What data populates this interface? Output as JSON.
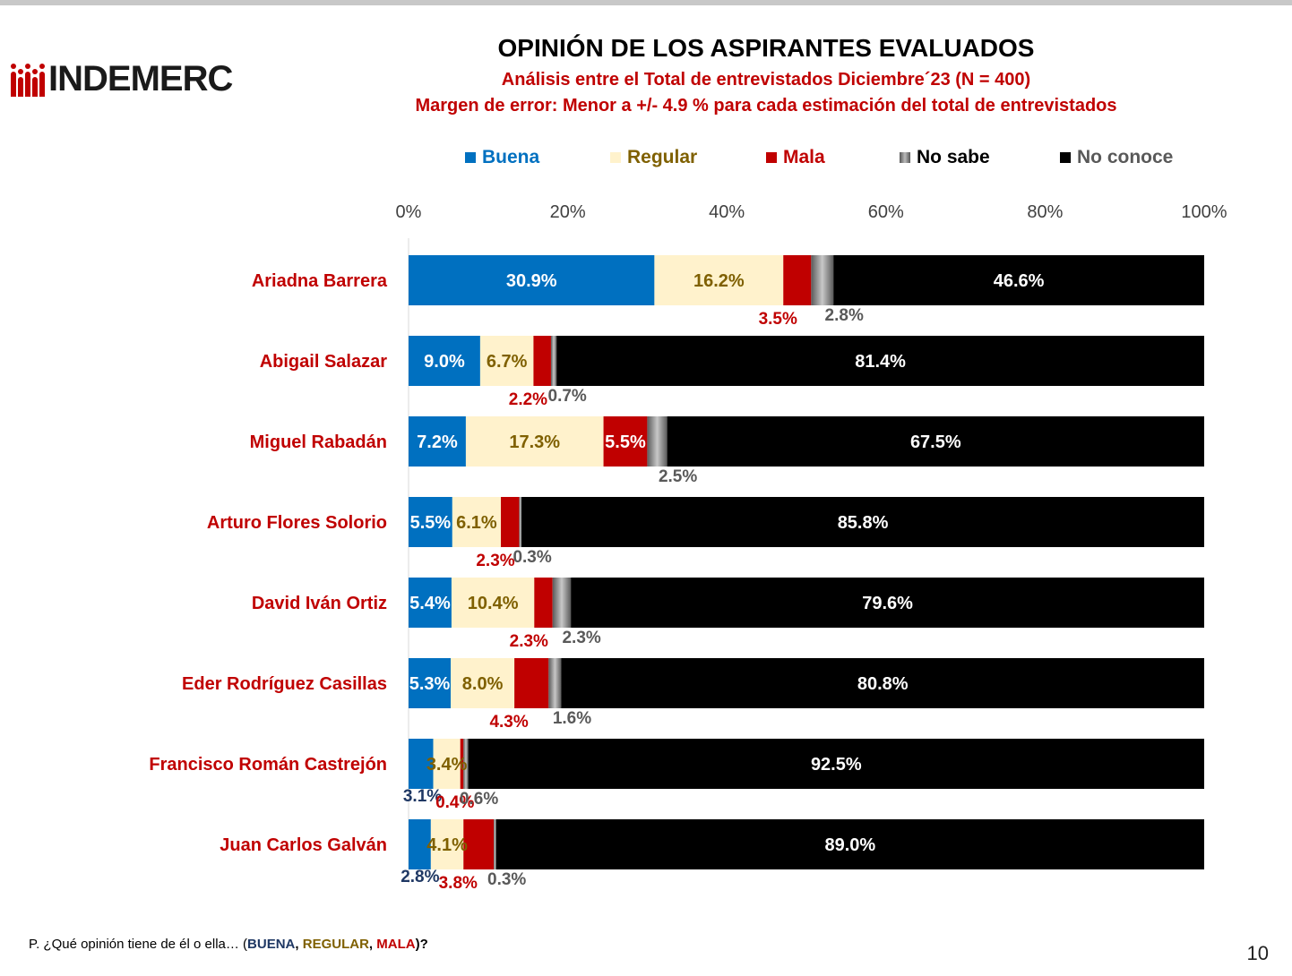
{
  "brand": {
    "logo_text": "INDEMERC"
  },
  "header": {
    "title": "OPINIÓN DE LOS ASPIRANTES EVALUADOS",
    "subtitle_1": "Análisis entre el Total de entrevistados Diciembre´23  (N = 400)",
    "subtitle_2": "Margen de error: Menor a +/- 4.9 %  para cada estimación del total de entrevistados"
  },
  "footer": {
    "question_prefix": "P. ¿Qué opinión tiene de él o ella… (",
    "opt_buena": "BUENA",
    "sep1": ", ",
    "opt_regular": "REGULAR",
    "sep2": ", ",
    "opt_mala": "MALA",
    "question_suffix": ")?",
    "page_number": "10"
  },
  "colors": {
    "buena": "#0070c0",
    "regular": "#fff2cc",
    "mala": "#c00000",
    "no_sabe": "#808080",
    "no_conoce": "#000000",
    "label_red": "#c00000",
    "label_gold": "#7f6000",
    "label_gray": "#595959",
    "label_navy": "#1f3864"
  },
  "chart_data": {
    "type": "bar",
    "orientation": "horizontal",
    "stacked": true,
    "categories": [
      "Ariadna Barrera",
      "Abigail Salazar",
      "Miguel Rabadán",
      "Arturo Flores Solorio",
      "David Iván Ortiz",
      "Eder Rodríguez Casillas",
      "Francisco Román Castrejón",
      "Juan Carlos Galván"
    ],
    "series": [
      {
        "name": "Buena",
        "color": "#0070c0",
        "values": [
          30.9,
          9.0,
          7.2,
          5.5,
          5.4,
          5.3,
          3.1,
          2.8
        ]
      },
      {
        "name": "Regular",
        "color": "#fff2cc",
        "values": [
          16.2,
          6.7,
          17.3,
          6.1,
          10.4,
          8.0,
          3.4,
          4.1
        ]
      },
      {
        "name": "Mala",
        "color": "#c00000",
        "values": [
          3.5,
          2.2,
          5.5,
          2.3,
          2.3,
          4.3,
          0.4,
          3.8
        ]
      },
      {
        "name": "No sabe",
        "color": "#808080",
        "values": [
          2.8,
          0.7,
          2.5,
          0.3,
          2.3,
          1.6,
          0.6,
          0.3
        ]
      },
      {
        "name": "No conoce",
        "color": "#000000",
        "values": [
          46.6,
          81.4,
          67.5,
          85.8,
          79.6,
          80.8,
          92.5,
          89.0
        ]
      }
    ],
    "data_labels": [
      [
        "30.9%",
        "16.2%",
        "3.5%",
        "2.8%",
        "46.6%"
      ],
      [
        "9.0%",
        "6.7%",
        "2.2%",
        "0.7%",
        "81.4%"
      ],
      [
        "7.2%",
        "17.3%",
        "5.5%",
        "2.5%",
        "67.5%"
      ],
      [
        "5.5%",
        "6.1%",
        "2.3%",
        "0.3%",
        "85.8%"
      ],
      [
        "5.4%",
        "10.4%",
        "2.3%",
        "2.3%",
        "79.6%"
      ],
      [
        "5.3%",
        "8.0%",
        "4.3%",
        "1.6%",
        "80.8%"
      ],
      [
        "3.1%",
        "3.4%",
        "0.4%",
        "0.6%",
        "92.5%"
      ],
      [
        "2.8%",
        "4.1%",
        "3.8%",
        "0.3%",
        "89.0%"
      ]
    ],
    "x_axis": {
      "min": 0,
      "max": 100,
      "ticks": [
        "0%",
        "20%",
        "40%",
        "60%",
        "80%",
        "100%"
      ],
      "position": "top"
    },
    "legend": {
      "position": "top"
    },
    "grid": false
  }
}
